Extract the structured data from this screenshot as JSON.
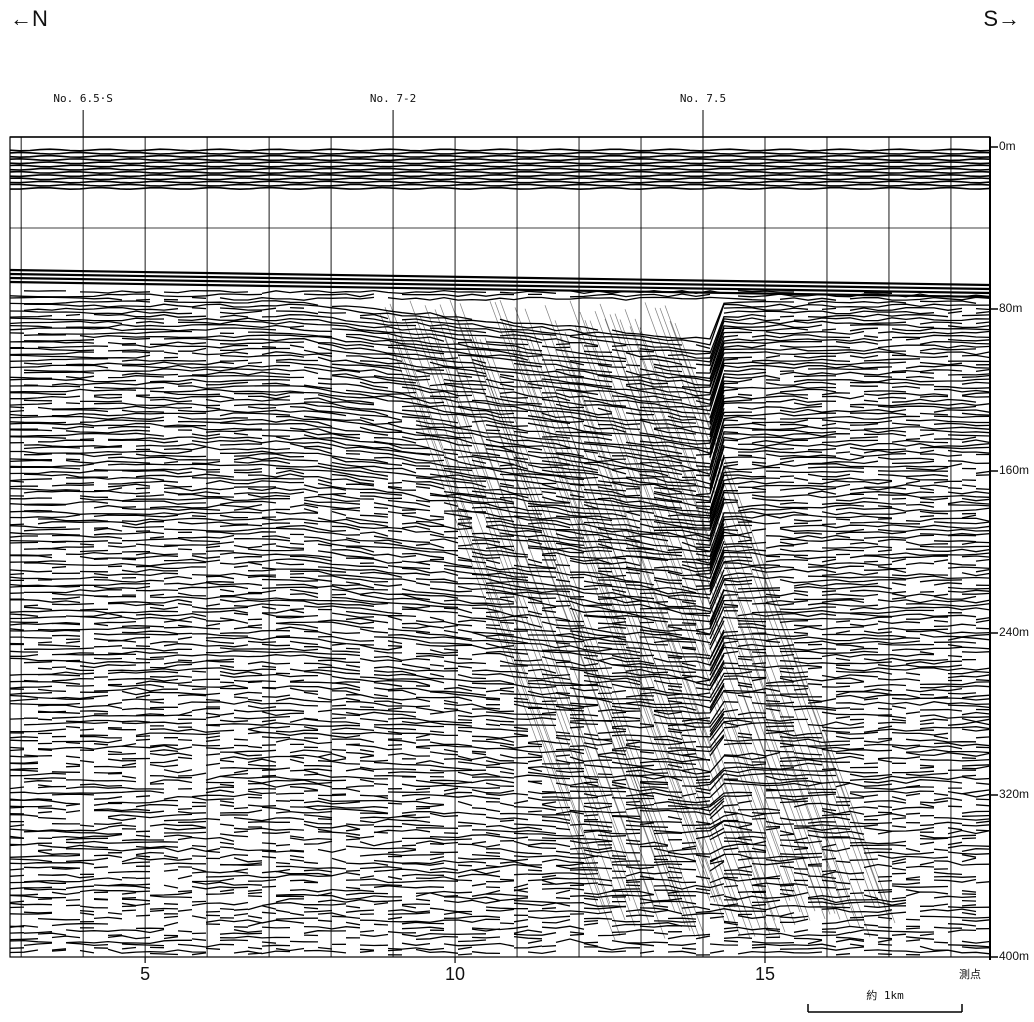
{
  "chart_data": {
    "type": "profile",
    "direction_left": "←N",
    "direction_right": "S→",
    "xlim": [
      2.82,
      18.63
    ],
    "xticks": [
      5,
      10,
      15
    ],
    "x_label": "測点",
    "ylim": [
      0,
      400
    ],
    "yticks": [
      {
        "value": 0,
        "label": "0m"
      },
      {
        "value": 80,
        "label": "80m"
      },
      {
        "value": 160,
        "label": "160m"
      },
      {
        "value": 240,
        "label": "240m"
      },
      {
        "value": 320,
        "label": "320m"
      },
      {
        "value": 400,
        "label": "400m"
      }
    ],
    "stations": [
      {
        "label": "No. 6.5·S",
        "x": 4
      },
      {
        "label": "No. 7-2",
        "x": 9
      },
      {
        "label": "No. 7.5",
        "x": 14
      }
    ],
    "scale_bar_label": "約 1km"
  }
}
